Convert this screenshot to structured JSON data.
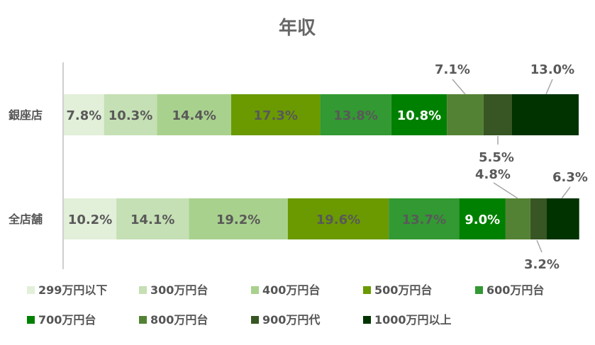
{
  "chart_data": {
    "type": "bar",
    "orientation": "horizontal",
    "stacked": "percent",
    "title": "年収",
    "categories": [
      "銀座店",
      "全店舗"
    ],
    "series": [
      {
        "name": "299万円以下",
        "color": "#E2EFD9",
        "values": [
          7.8,
          10.2
        ],
        "labels": [
          "7.8%",
          "10.2%"
        ]
      },
      {
        "name": "300万円台",
        "color": "#C5E0B4",
        "values": [
          10.3,
          14.1
        ],
        "labels": [
          "10.3%",
          "14.1%"
        ]
      },
      {
        "name": "400万円台",
        "color": "#A9D18E",
        "values": [
          14.4,
          19.2
        ],
        "labels": [
          "14.4%",
          "19.2%"
        ]
      },
      {
        "name": "500万円台",
        "color": "#6A9A00",
        "values": [
          17.3,
          19.6
        ],
        "labels": [
          "17.3%",
          "19.6%"
        ]
      },
      {
        "name": "600万円台",
        "color": "#339933",
        "values": [
          13.8,
          13.7
        ],
        "labels": [
          "13.8%",
          "13.7%"
        ]
      },
      {
        "name": "700万円台",
        "color": "#008000",
        "values": [
          10.8,
          9.0
        ],
        "labels": [
          "10.8%",
          "9.0%"
        ]
      },
      {
        "name": "800万円台",
        "color": "#548235",
        "values": [
          7.1,
          4.8
        ],
        "labels": [
          "7.1%",
          "4.8%"
        ]
      },
      {
        "name": "900万円代",
        "color": "#375623",
        "values": [
          5.5,
          3.2
        ],
        "labels": [
          "5.5%",
          "3.2%"
        ]
      },
      {
        "name": "1000万円以上",
        "color": "#003300",
        "values": [
          13.0,
          6.3
        ],
        "labels": [
          "13.0%",
          "6.3%"
        ]
      }
    ],
    "xlim": [
      0,
      100
    ],
    "grid": false,
    "legend": "bottom"
  }
}
